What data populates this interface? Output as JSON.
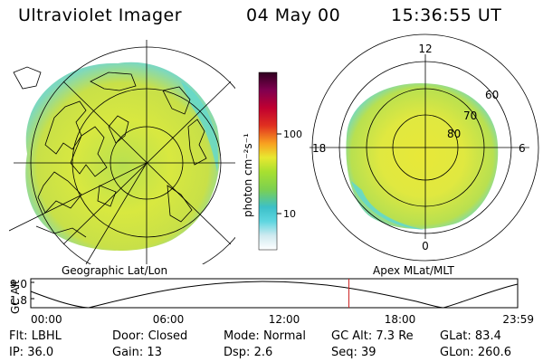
{
  "header": {
    "instrument": "Ultraviolet Imager",
    "date": "04 May 00",
    "time": "15:36:55 UT"
  },
  "geo_panel": {
    "label": "Geographic Lat/Lon"
  },
  "colorbar": {
    "unit_label": "photon cm⁻²s⁻¹",
    "tick_100": "100",
    "tick_10": "10",
    "scale": "log",
    "colors_bottom_to_top": [
      "#ffffff",
      "#cfeaf0",
      "#5fd6e0",
      "#3cc0c8",
      "#7cd050",
      "#a8e030",
      "#e8e830",
      "#f8a020",
      "#e03020",
      "#c00030",
      "#800050",
      "#300020"
    ]
  },
  "apex_panel": {
    "label": "Apex MLat/MLT",
    "mlt_12": "12",
    "mlt_18": "18",
    "mlt_6": "6",
    "mlt_0": "0",
    "lat_60": "60",
    "lat_70": "70",
    "lat_80": "80"
  },
  "orbit": {
    "axis_label": "GC Alt",
    "y_max": "9.0",
    "y_min": "1.8",
    "x_ticks": [
      "00:00",
      "06:00",
      "12:00",
      "18:00",
      "23:59"
    ],
    "current_time_fraction": 0.6534,
    "marker_color": "#cc2222"
  },
  "info": {
    "flt_label": "Flt:",
    "flt_value": "LBHL",
    "door_label": "Door:",
    "door_value": "Closed",
    "mode_label": "Mode:",
    "mode_value": "Normal",
    "gcalt_label": "GC Alt:",
    "gcalt_value": "7.3 Re",
    "glat_label": "GLat:",
    "glat_value": "83.4",
    "ip_label": "IP:",
    "ip_value": "36.0",
    "gain_label": "Gain:",
    "gain_value": "13",
    "dsp_label": "Dsp:",
    "dsp_value": "2.6",
    "seq_label": "Seq:",
    "seq_value": "39",
    "glon_label": "GLon:",
    "glon_value": "260.6"
  }
}
